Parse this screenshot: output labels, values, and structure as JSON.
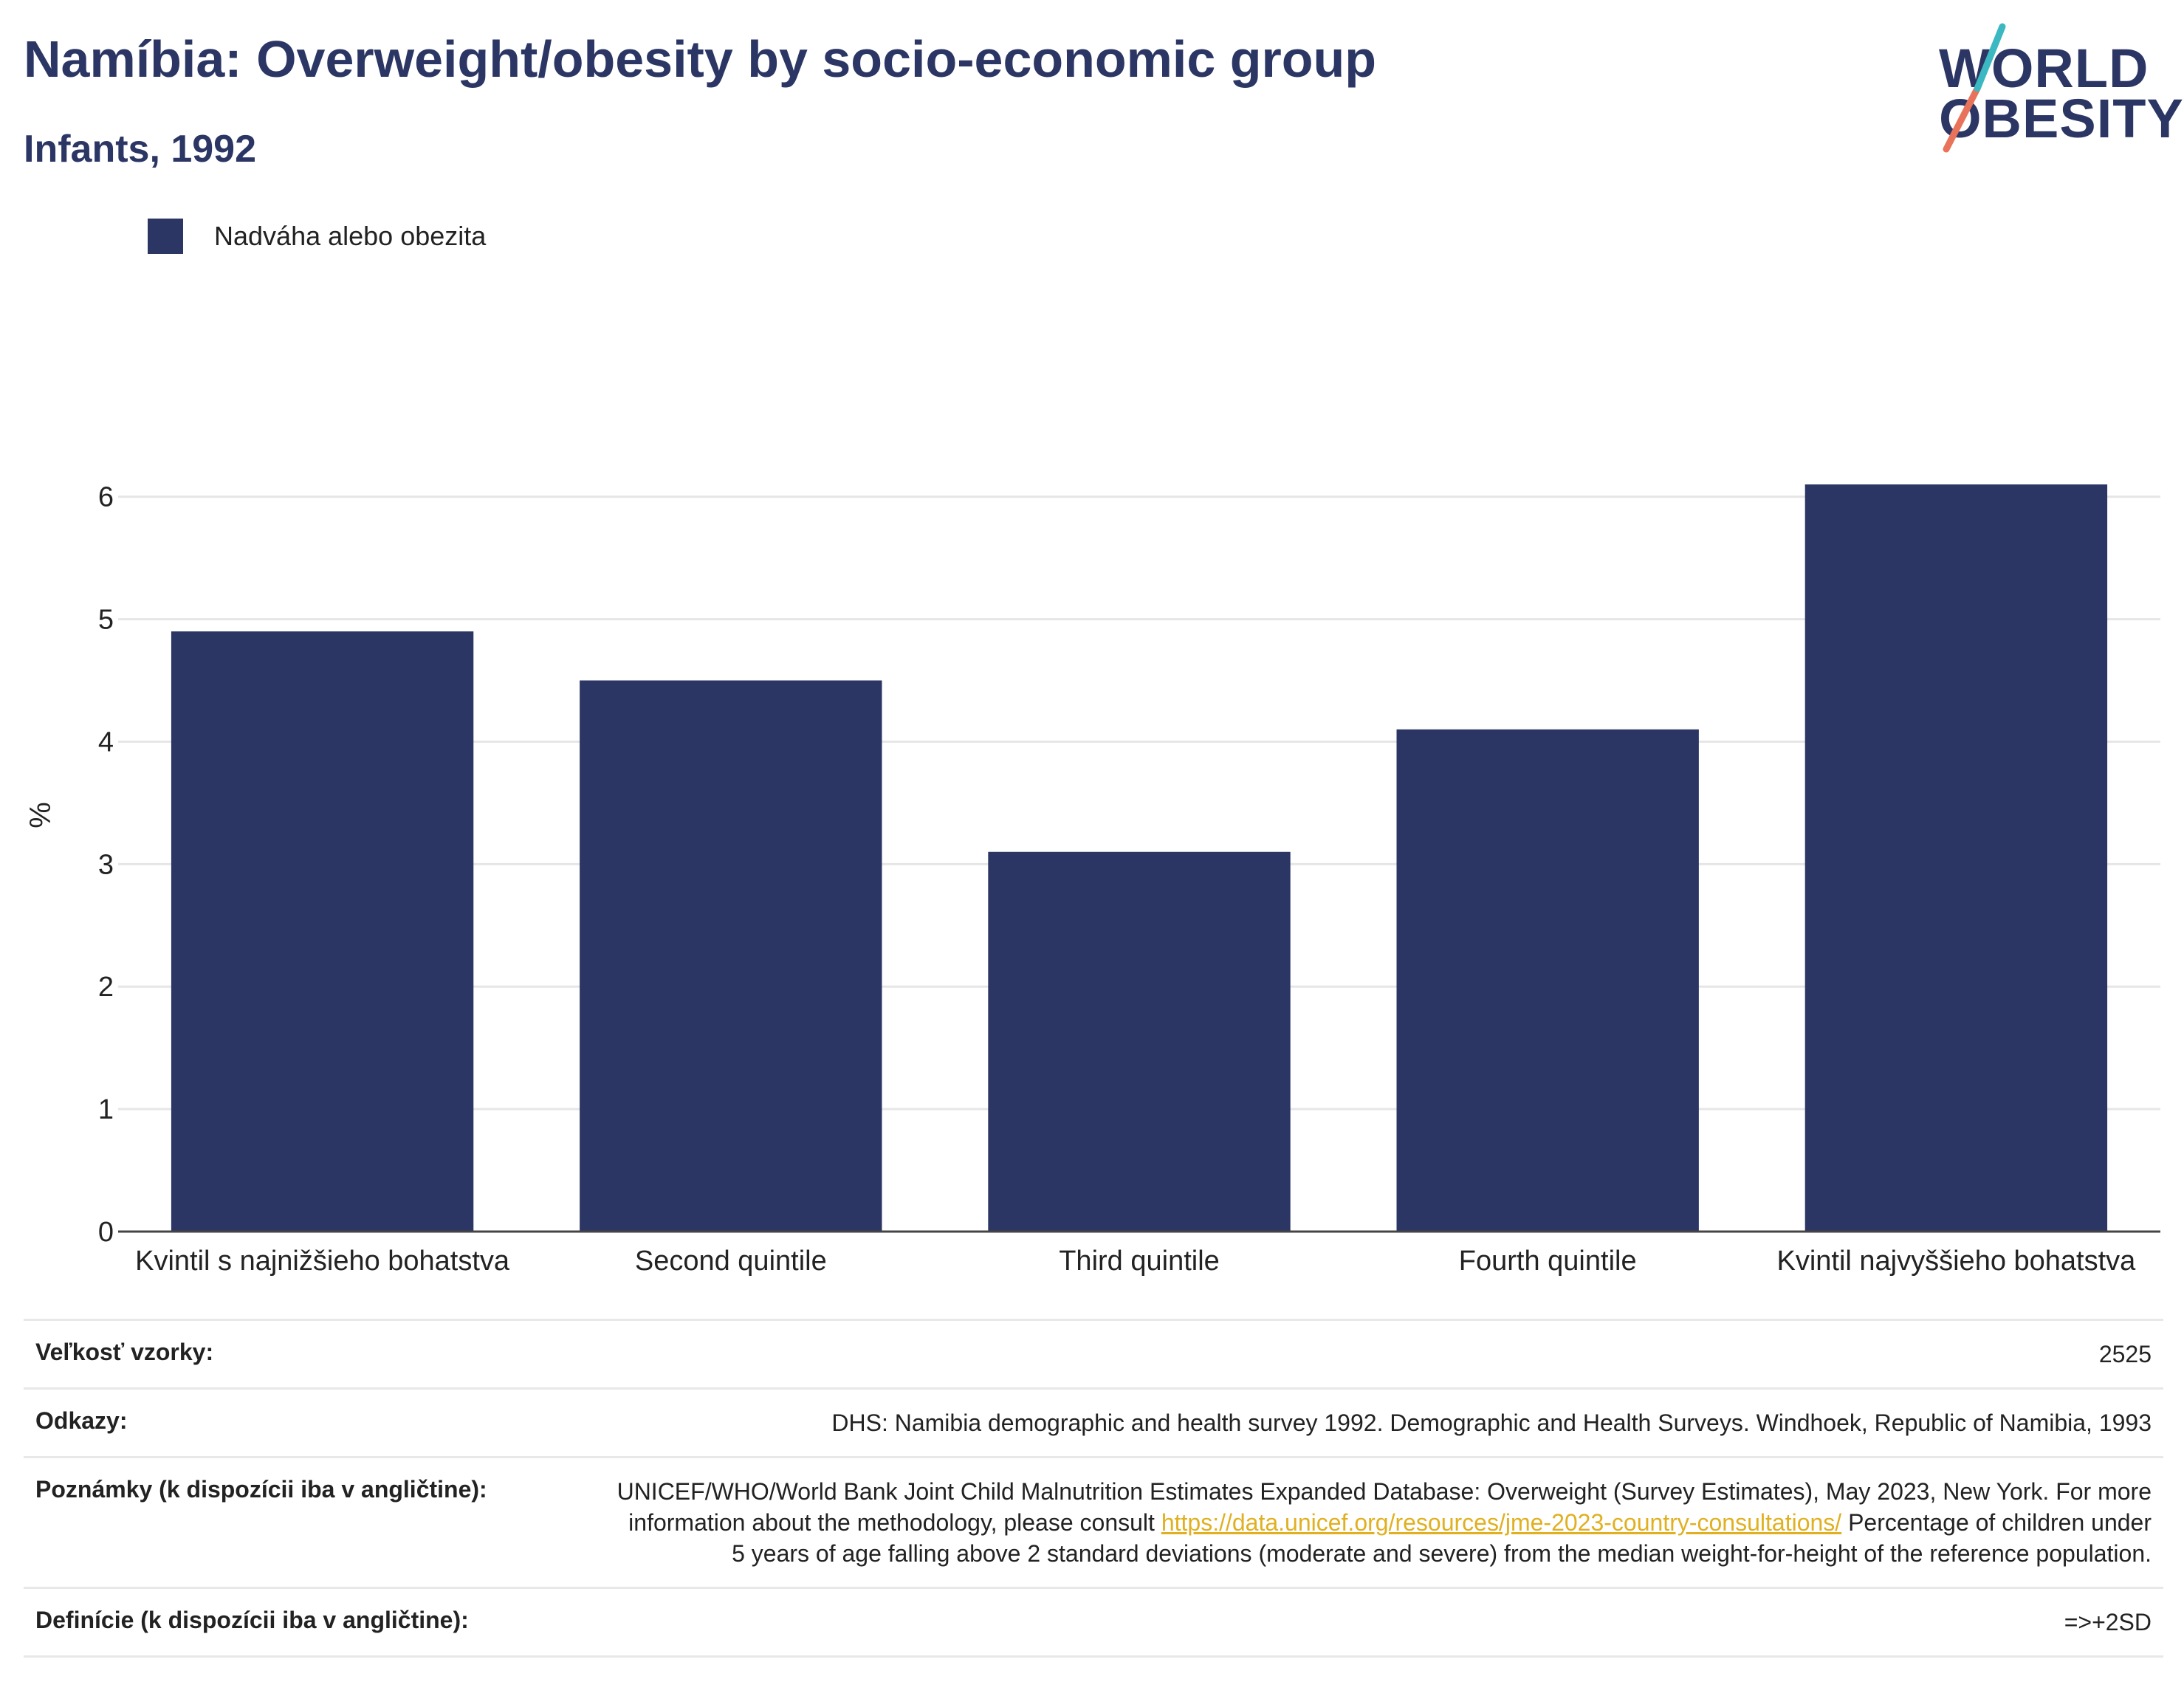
{
  "title": "Namíbia: Overweight/obesity by socio-economic group",
  "subtitle": "Infants, 1992",
  "logo": {
    "line1": "WORLD",
    "line2": "OBESITY",
    "colors": {
      "navy": "#2b3664",
      "teal": "#3bb8c1",
      "coral": "#e8735a"
    }
  },
  "legend": {
    "label": "Nadváha alebo obezita",
    "color": "#2b3664"
  },
  "chart_data": {
    "type": "bar",
    "categories": [
      "Kvintil s najnižšieho bohatstva",
      "Second quintile",
      "Third quintile",
      "Fourth quintile",
      "Kvintil najvyššieho bohatstva"
    ],
    "series": [
      {
        "name": "Nadváha alebo obezita",
        "values": [
          4.9,
          4.5,
          3.1,
          4.1,
          6.1
        ]
      }
    ],
    "ylabel": "%",
    "ylim": [
      0,
      6.8
    ],
    "yticks": [
      0,
      1,
      2,
      3,
      4,
      5,
      6
    ],
    "grid": true,
    "legend_position": "top-left",
    "bar_color": "#2b3664"
  },
  "table": {
    "rows": [
      {
        "key": "Veľkosť vzorky:",
        "value": "2525"
      },
      {
        "key": "Odkazy:",
        "value": "DHS: Namibia demographic and health survey 1992. Demographic and Health Surveys. Windhoek, Republic of Namibia, 1993"
      },
      {
        "key": "Poznámky (k dispozícii iba v angličtine):",
        "value_pre": "UNICEF/WHO/World Bank Joint Child Malnutrition Estimates Expanded Database: Overweight (Survey Estimates), May 2023, New York. For more information about the methodology, please consult ",
        "link": "https://data.unicef.org/resources/jme-2023-country-consultations/",
        "value_post": " Percentage of children under 5 years of age falling above 2 standard deviations (moderate and severe) from the median weight-for-height of the reference population."
      },
      {
        "key": "Definície (k dispozícii iba v angličtine):",
        "value": "=>+2SD"
      }
    ]
  }
}
